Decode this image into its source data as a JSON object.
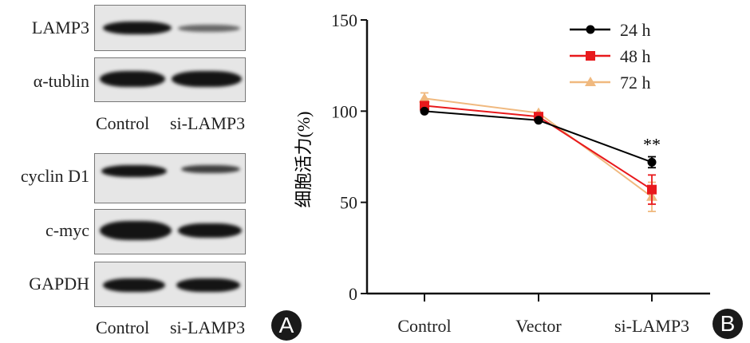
{
  "panel_a": {
    "badge": "A",
    "blot_group_1": {
      "rows": [
        {
          "label": "LAMP3",
          "control_intensity": 1.0,
          "si_intensity": 0.45
        },
        {
          "label": "α-tublin",
          "control_intensity": 0.95,
          "si_intensity": 0.95
        }
      ],
      "lanes": [
        "Control",
        "si-LAMP3"
      ]
    },
    "blot_group_2": {
      "rows": [
        {
          "label": "cyclin D1",
          "control_intensity": 0.9,
          "si_intensity": 0.6
        },
        {
          "label": "c-myc",
          "control_intensity": 1.0,
          "si_intensity": 0.85
        },
        {
          "label": "GAPDH",
          "control_intensity": 0.9,
          "si_intensity": 0.9
        }
      ],
      "lanes": [
        "Control",
        "si-LAMP3"
      ]
    }
  },
  "panel_b": {
    "badge": "B",
    "annotation": "**"
  },
  "chart_data": {
    "type": "line",
    "title": "",
    "xlabel": "",
    "ylabel": "细胞活力(%)",
    "categories": [
      "Control",
      "Vector",
      "si-LAMP3"
    ],
    "ylim": [
      0,
      150
    ],
    "yticks": [
      "0",
      "50",
      "100",
      "150"
    ],
    "legend_position": "top-right",
    "series": [
      {
        "name": "24 h",
        "color": "#000000",
        "marker": "circle",
        "values": [
          100,
          95,
          72
        ],
        "errors": [
          1,
          1,
          3
        ]
      },
      {
        "name": "48 h",
        "color": "#e8191c",
        "marker": "square",
        "values": [
          103,
          97,
          57
        ],
        "errors": [
          1,
          1,
          8
        ]
      },
      {
        "name": "72 h",
        "color": "#f0b97f",
        "marker": "triangle",
        "values": [
          107,
          99,
          53
        ],
        "errors": [
          3,
          1,
          8
        ]
      }
    ],
    "annotations": [
      {
        "category": "si-LAMP3",
        "text": "**"
      }
    ]
  }
}
